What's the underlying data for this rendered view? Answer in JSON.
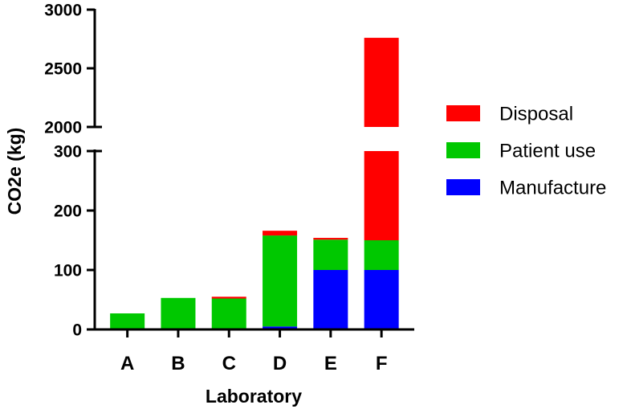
{
  "chart_data": {
    "type": "bar",
    "stacked": true,
    "title": "",
    "xlabel": "Laboratory",
    "ylabel": "CO2e  (kg)",
    "categories": [
      "A",
      "B",
      "C",
      "D",
      "E",
      "F"
    ],
    "series": [
      {
        "name": "Manufacture",
        "color": "#0000FF",
        "values": [
          0,
          0,
          0,
          5,
          100,
          100
        ]
      },
      {
        "name": "Patient use",
        "color": "#00C800",
        "values": [
          27,
          53,
          52,
          153,
          51,
          50
        ]
      },
      {
        "name": "Disposal",
        "color": "#FF0000",
        "values": [
          0,
          0,
          3,
          8,
          3,
          2610
        ]
      }
    ],
    "y_axis_broken": true,
    "y_segments": [
      {
        "range": [
          0,
          300
        ],
        "ticks": [
          0,
          100,
          200,
          300
        ]
      },
      {
        "range": [
          2000,
          3000
        ],
        "ticks": [
          2000,
          2500,
          3000
        ]
      }
    ],
    "legend_order": [
      "Disposal",
      "Patient use",
      "Manufacture"
    ],
    "legend_position": "right",
    "grid": false
  }
}
